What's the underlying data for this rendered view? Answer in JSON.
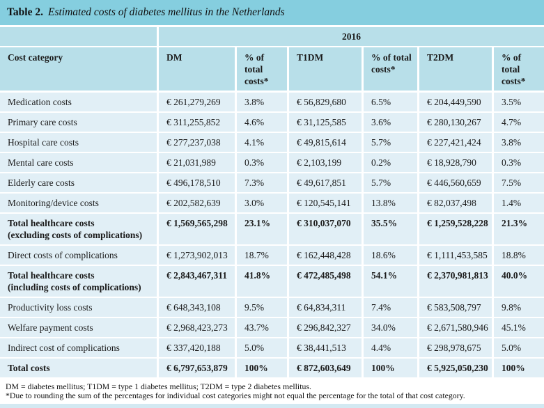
{
  "title": {
    "prefix": "Table 2.",
    "text": "Estimated costs of diabetes mellitus in the Netherlands"
  },
  "table": {
    "year": "2016",
    "headers": {
      "category": "Cost category",
      "dm": "DM",
      "dm_pct": "% of total costs*",
      "t1dm": "T1DM",
      "t1dm_pct": "% of total costs*",
      "t2dm": "T2DM",
      "t2dm_pct": "% of total costs*"
    },
    "rows": [
      {
        "name": "Medication costs",
        "name2": "",
        "dm": "€ 261,279,269",
        "dm_pct": "3.8%",
        "t1dm": "€ 56,829,680",
        "t1dm_pct": "6.5%",
        "t2dm": "€ 204,449,590",
        "t2dm_pct": "3.5%",
        "bold": false
      },
      {
        "name": "Primary care costs",
        "name2": "",
        "dm": "€ 311,255,852",
        "dm_pct": "4.6%",
        "t1dm": "€ 31,125,585",
        "t1dm_pct": "3.6%",
        "t2dm": "€ 280,130,267",
        "t2dm_pct": "4.7%",
        "bold": false
      },
      {
        "name": "Hospital care costs",
        "name2": "",
        "dm": "€ 277,237,038",
        "dm_pct": "4.1%",
        "t1dm": "€ 49,815,614",
        "t1dm_pct": "5.7%",
        "t2dm": "€ 227,421,424",
        "t2dm_pct": "3.8%",
        "bold": false
      },
      {
        "name": "Mental care costs",
        "name2": "",
        "dm": "€ 21,031,989",
        "dm_pct": "0.3%",
        "t1dm": "€ 2,103,199",
        "t1dm_pct": "0.2%",
        "t2dm": "€ 18,928,790",
        "t2dm_pct": "0.3%",
        "bold": false
      },
      {
        "name": "Elderly care costs",
        "name2": "",
        "dm": "€ 496,178,510",
        "dm_pct": "7.3%",
        "t1dm": "€ 49,617,851",
        "t1dm_pct": "5.7%",
        "t2dm": "€ 446,560,659",
        "t2dm_pct": "7.5%",
        "bold": false
      },
      {
        "name": "Monitoring/device costs",
        "name2": "",
        "dm": "€ 202,582,639",
        "dm_pct": "3.0%",
        "t1dm": "€ 120,545,141",
        "t1dm_pct": "13.8%",
        "t2dm": "€ 82,037,498",
        "t2dm_pct": "1.4%",
        "bold": false
      },
      {
        "name": "Total healthcare costs",
        "name2": "(excluding costs of complications)",
        "dm": "€ 1,569,565,298",
        "dm_pct": "23.1%",
        "t1dm": "€ 310,037,070",
        "t1dm_pct": "35.5%",
        "t2dm": "€ 1,259,528,228",
        "t2dm_pct": "21.3%",
        "bold": true
      },
      {
        "name": "Direct costs of complications",
        "name2": "",
        "dm": "€ 1,273,902,013",
        "dm_pct": "18.7%",
        "t1dm": "€ 162,448,428",
        "t1dm_pct": "18.6%",
        "t2dm": "€ 1,111,453,585",
        "t2dm_pct": "18.8%",
        "bold": false
      },
      {
        "name": "Total healthcare costs",
        "name2": "(including costs of complications)",
        "dm": "€ 2,843,467,311",
        "dm_pct": "41.8%",
        "t1dm": "€ 472,485,498",
        "t1dm_pct": "54.1%",
        "t2dm": "€ 2,370,981,813",
        "t2dm_pct": "40.0%",
        "bold": true
      },
      {
        "name": "Productivity loss costs",
        "name2": "",
        "dm": "€ 648,343,108",
        "dm_pct": "9.5%",
        "t1dm": "€ 64,834,311",
        "t1dm_pct": "7.4%",
        "t2dm": "€ 583,508,797",
        "t2dm_pct": "9.8%",
        "bold": false
      },
      {
        "name": "Welfare payment costs",
        "name2": "",
        "dm": "€ 2,968,423,273",
        "dm_pct": "43.7%",
        "t1dm": "€ 296,842,327",
        "t1dm_pct": "34.0%",
        "t2dm": "€ 2,671,580,946",
        "t2dm_pct": "45.1%",
        "bold": false
      },
      {
        "name": "Indirect cost of complications",
        "name2": "",
        "dm": "€ 337,420,188",
        "dm_pct": "5.0%",
        "t1dm": "€ 38,441,513",
        "t1dm_pct": "4.4%",
        "t2dm": "€ 298,978,675",
        "t2dm_pct": "5.0%",
        "bold": false
      },
      {
        "name": "Total costs",
        "name2": "",
        "dm": "€ 6,797,653,879",
        "dm_pct": "100%",
        "t1dm": "€ 872,603,649",
        "t1dm_pct": "100%",
        "t2dm": "€ 5,925,050,230",
        "t2dm_pct": "100%",
        "bold": true
      }
    ]
  },
  "footnotes": {
    "abbreviations": "DM = diabetes mellitus; T1DM = type 1 diabetes mellitus; T2DM = type 2 diabetes mellitus.",
    "rounding": "*Due to rounding the sum of the percentages for individual cost categories might not equal the percentage for the total of that cost category."
  },
  "colors": {
    "title_bar": "#85cedf",
    "header_band": "#b8dfe9",
    "row_bg": "#e1eff6",
    "bottom_strip": "#d3e9f2",
    "text": "#1a1a1a"
  }
}
